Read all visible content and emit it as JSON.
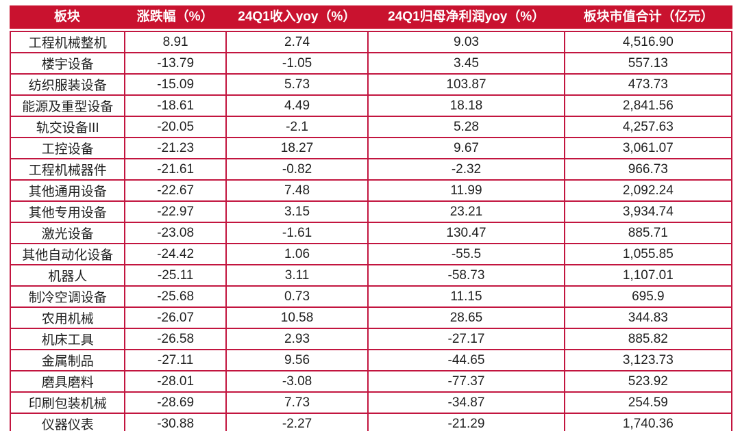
{
  "table": {
    "columns": [
      "板块",
      "涨跌幅（%）",
      "24Q1收入yoy（%）",
      "24Q1归母净利润yoy（%）",
      "板块市值合计（亿元）"
    ],
    "rows": [
      {
        "sector": "工程机械整机",
        "change": "8.91",
        "revenue_yoy": "2.74",
        "profit_yoy": "9.03",
        "market_cap": "4,516.90"
      },
      {
        "sector": "楼宇设备",
        "change": "-13.79",
        "revenue_yoy": "-1.05",
        "profit_yoy": "3.45",
        "market_cap": "557.13"
      },
      {
        "sector": "纺织服装设备",
        "change": "-15.09",
        "revenue_yoy": "5.73",
        "profit_yoy": "103.87",
        "market_cap": "473.73"
      },
      {
        "sector": "能源及重型设备",
        "change": "-18.61",
        "revenue_yoy": "4.49",
        "profit_yoy": "18.18",
        "market_cap": "2,841.56"
      },
      {
        "sector": "轨交设备III",
        "change": "-20.05",
        "revenue_yoy": "-2.1",
        "profit_yoy": "5.28",
        "market_cap": "4,257.63"
      },
      {
        "sector": "工控设备",
        "change": "-21.23",
        "revenue_yoy": "18.27",
        "profit_yoy": "9.67",
        "market_cap": "3,061.07"
      },
      {
        "sector": "工程机械器件",
        "change": "-21.61",
        "revenue_yoy": "-0.82",
        "profit_yoy": "-2.32",
        "market_cap": "966.73"
      },
      {
        "sector": "其他通用设备",
        "change": "-22.67",
        "revenue_yoy": "7.48",
        "profit_yoy": "11.99",
        "market_cap": "2,092.24"
      },
      {
        "sector": "其他专用设备",
        "change": "-22.97",
        "revenue_yoy": "3.15",
        "profit_yoy": "23.21",
        "market_cap": "3,934.74"
      },
      {
        "sector": "激光设备",
        "change": "-23.08",
        "revenue_yoy": "-1.61",
        "profit_yoy": "130.47",
        "market_cap": "885.71"
      },
      {
        "sector": "其他自动化设备",
        "change": "-24.42",
        "revenue_yoy": "1.06",
        "profit_yoy": "-55.5",
        "market_cap": "1,055.85"
      },
      {
        "sector": "机器人",
        "change": "-25.11",
        "revenue_yoy": "3.11",
        "profit_yoy": "-58.73",
        "market_cap": "1,107.01"
      },
      {
        "sector": "制冷空调设备",
        "change": "-25.68",
        "revenue_yoy": "0.73",
        "profit_yoy": "11.15",
        "market_cap": "695.9"
      },
      {
        "sector": "农用机械",
        "change": "-26.07",
        "revenue_yoy": "10.58",
        "profit_yoy": "28.65",
        "market_cap": "344.83"
      },
      {
        "sector": "机床工具",
        "change": "-26.58",
        "revenue_yoy": "2.93",
        "profit_yoy": "-27.17",
        "market_cap": "885.82"
      },
      {
        "sector": "金属制品",
        "change": "-27.11",
        "revenue_yoy": "9.56",
        "profit_yoy": "-44.65",
        "market_cap": "3,123.73"
      },
      {
        "sector": "磨具磨料",
        "change": "-28.01",
        "revenue_yoy": "-3.08",
        "profit_yoy": "-77.37",
        "market_cap": "523.92"
      },
      {
        "sector": "印刷包装机械",
        "change": "-28.69",
        "revenue_yoy": "7.73",
        "profit_yoy": "-34.87",
        "market_cap": "254.59"
      },
      {
        "sector": "仪器仪表",
        "change": "-30.88",
        "revenue_yoy": "-2.27",
        "profit_yoy": "-21.29",
        "market_cap": "1,740.36"
      }
    ]
  },
  "colors": {
    "header_bg": "#C9122F",
    "header_text": "#FFFFFF",
    "grid_border": "#C2153F",
    "body_text": "#1F1F1F",
    "background": "#FFFFFF"
  },
  "chart_data": {
    "type": "table",
    "title": "",
    "columns": [
      "板块",
      "涨跌幅（%）",
      "24Q1收入yoy（%）",
      "24Q1归母净利润yoy（%）",
      "板块市值合计（亿元）"
    ],
    "rows": [
      [
        "工程机械整机",
        8.91,
        2.74,
        9.03,
        4516.9
      ],
      [
        "楼宇设备",
        -13.79,
        -1.05,
        3.45,
        557.13
      ],
      [
        "纺织服装设备",
        -15.09,
        5.73,
        103.87,
        473.73
      ],
      [
        "能源及重型设备",
        -18.61,
        4.49,
        18.18,
        2841.56
      ],
      [
        "轨交设备III",
        -20.05,
        -2.1,
        5.28,
        4257.63
      ],
      [
        "工控设备",
        -21.23,
        18.27,
        9.67,
        3061.07
      ],
      [
        "工程机械器件",
        -21.61,
        -0.82,
        -2.32,
        966.73
      ],
      [
        "其他通用设备",
        -22.67,
        7.48,
        11.99,
        2092.24
      ],
      [
        "其他专用设备",
        -22.97,
        3.15,
        23.21,
        3934.74
      ],
      [
        "激光设备",
        -23.08,
        -1.61,
        130.47,
        885.71
      ],
      [
        "其他自动化设备",
        -24.42,
        1.06,
        -55.5,
        1055.85
      ],
      [
        "机器人",
        -25.11,
        3.11,
        -58.73,
        1107.01
      ],
      [
        "制冷空调设备",
        -25.68,
        0.73,
        11.15,
        695.9
      ],
      [
        "农用机械",
        -26.07,
        10.58,
        28.65,
        344.83
      ],
      [
        "机床工具",
        -26.58,
        2.93,
        -27.17,
        885.82
      ],
      [
        "金属制品",
        -27.11,
        9.56,
        -44.65,
        3123.73
      ],
      [
        "磨具磨料",
        -28.01,
        -3.08,
        -77.37,
        523.92
      ],
      [
        "印刷包装机械",
        -28.69,
        7.73,
        -34.87,
        254.59
      ],
      [
        "仪器仪表",
        -30.88,
        -2.27,
        -21.29,
        1740.36
      ]
    ]
  }
}
